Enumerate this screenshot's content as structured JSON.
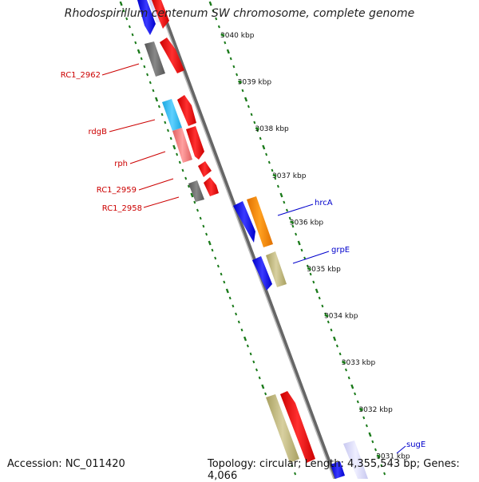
{
  "title": "Rhodospirillum centenum SW chromosome, complete genome",
  "footer": {
    "accession": "Accession: NC_011420",
    "summary": "Topology: circular; Length: 4,355,543 bp; Genes: 4,066"
  },
  "colors": {
    "backbone": "#888888",
    "tick": "#1a7a1a",
    "label_left": "#cc0000",
    "label_right": "#0000cc"
  },
  "kbp_markers": [
    "3040 kbp",
    "3039 kbp",
    "3038 kbp",
    "3037 kbp",
    "3036 kbp",
    "3035 kbp",
    "3034 kbp",
    "3033 kbp",
    "3032 kbp",
    "3031 kbp"
  ],
  "gene_labels": [
    {
      "name": "RC1_2962",
      "side": "left"
    },
    {
      "name": "rdgB",
      "side": "left"
    },
    {
      "name": "rph",
      "side": "left"
    },
    {
      "name": "RC1_2959",
      "side": "left"
    },
    {
      "name": "RC1_2958",
      "side": "left"
    },
    {
      "name": "hrcA",
      "side": "right"
    },
    {
      "name": "grpE",
      "side": "right"
    },
    {
      "name": "sugE",
      "side": "right"
    }
  ]
}
